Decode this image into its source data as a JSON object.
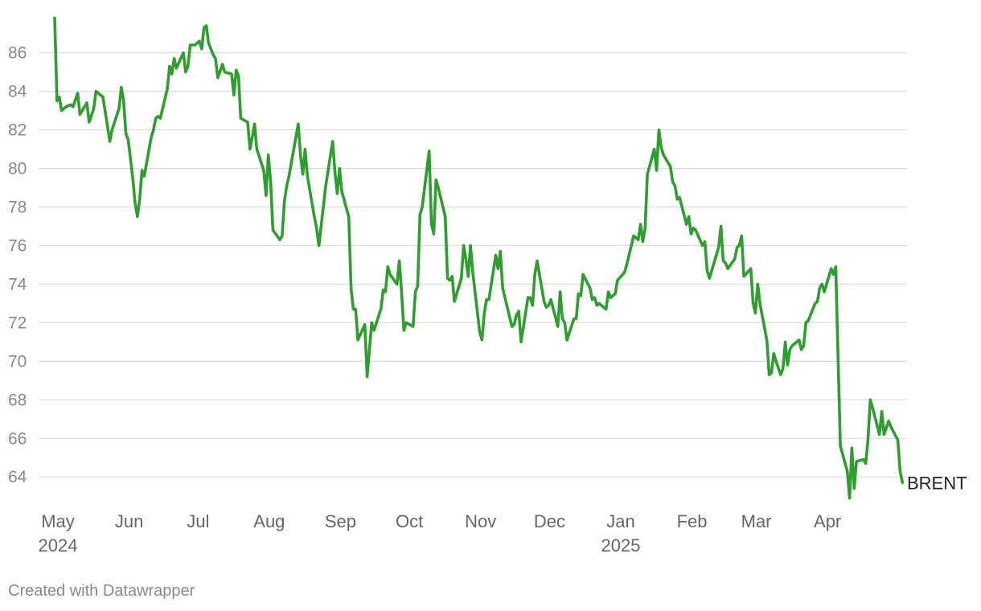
{
  "chart_data": {
    "type": "line",
    "title": "",
    "xlabel": "",
    "ylabel": "",
    "ylim": [
      62.8,
      87.9
    ],
    "yticks": [
      64,
      66,
      68,
      70,
      72,
      74,
      76,
      78,
      80,
      82,
      84,
      86
    ],
    "grid": true,
    "x_axis": {
      "start": "2024-05-01",
      "end": "2025-04-30",
      "ticks": [
        {
          "date": "2024-05-01",
          "label": "May",
          "sublabel": "2024"
        },
        {
          "date": "2024-06-01",
          "label": "Jun",
          "sublabel": ""
        },
        {
          "date": "2024-07-01",
          "label": "Jul",
          "sublabel": ""
        },
        {
          "date": "2024-08-01",
          "label": "Aug",
          "sublabel": ""
        },
        {
          "date": "2024-09-01",
          "label": "Sep",
          "sublabel": ""
        },
        {
          "date": "2024-10-01",
          "label": "Oct",
          "sublabel": ""
        },
        {
          "date": "2024-11-01",
          "label": "Nov",
          "sublabel": ""
        },
        {
          "date": "2024-12-01",
          "label": "Dec",
          "sublabel": ""
        },
        {
          "date": "2025-01-01",
          "label": "Jan",
          "sublabel": "2025"
        },
        {
          "date": "2025-02-01",
          "label": "Feb",
          "sublabel": ""
        },
        {
          "date": "2025-03-01",
          "label": "Mar",
          "sublabel": ""
        },
        {
          "date": "2025-04-01",
          "label": "Apr",
          "sublabel": ""
        }
      ]
    },
    "series": [
      {
        "name": "BRENT",
        "color": "#2e9e2e",
        "points": [
          [
            "2024-05-01",
            87.8
          ],
          [
            "2024-05-02",
            83.5
          ],
          [
            "2024-05-03",
            83.7
          ],
          [
            "2024-05-04",
            83.0
          ],
          [
            "2024-05-06",
            83.2
          ],
          [
            "2024-05-08",
            83.3
          ],
          [
            "2024-05-09",
            83.2
          ],
          [
            "2024-05-11",
            83.9
          ],
          [
            "2024-05-12",
            82.8
          ],
          [
            "2024-05-13",
            83.0
          ],
          [
            "2024-05-15",
            83.4
          ],
          [
            "2024-05-16",
            82.4
          ],
          [
            "2024-05-18",
            83.1
          ],
          [
            "2024-05-19",
            84.0
          ],
          [
            "2024-05-22",
            83.7
          ],
          [
            "2024-05-25",
            81.4
          ],
          [
            "2024-05-26",
            82.0
          ],
          [
            "2024-05-29",
            83.1
          ],
          [
            "2024-05-30",
            84.2
          ],
          [
            "2024-05-31",
            83.5
          ],
          [
            "2024-06-01",
            81.8
          ],
          [
            "2024-06-02",
            81.5
          ],
          [
            "2024-06-04",
            79.5
          ],
          [
            "2024-06-05",
            78.2
          ],
          [
            "2024-06-06",
            77.5
          ],
          [
            "2024-06-07",
            78.4
          ],
          [
            "2024-06-08",
            79.9
          ],
          [
            "2024-06-09",
            79.6
          ],
          [
            "2024-06-12",
            81.6
          ],
          [
            "2024-06-13",
            82.0
          ],
          [
            "2024-06-14",
            82.6
          ],
          [
            "2024-06-15",
            82.7
          ],
          [
            "2024-06-16",
            82.6
          ],
          [
            "2024-06-19",
            84.1
          ],
          [
            "2024-06-20",
            85.3
          ],
          [
            "2024-06-21",
            84.9
          ],
          [
            "2024-06-22",
            85.7
          ],
          [
            "2024-06-23",
            85.2
          ],
          [
            "2024-06-26",
            86.0
          ],
          [
            "2024-06-27",
            85.0
          ],
          [
            "2024-06-28",
            85.3
          ],
          [
            "2024-06-29",
            86.4
          ],
          [
            "2024-07-01",
            86.4
          ],
          [
            "2024-07-03",
            86.6
          ],
          [
            "2024-07-04",
            86.2
          ],
          [
            "2024-07-05",
            87.3
          ],
          [
            "2024-07-06",
            87.4
          ],
          [
            "2024-07-07",
            86.5
          ],
          [
            "2024-07-09",
            85.9
          ],
          [
            "2024-07-10",
            85.7
          ],
          [
            "2024-07-11",
            84.7
          ],
          [
            "2024-07-13",
            85.4
          ],
          [
            "2024-07-14",
            85.0
          ],
          [
            "2024-07-17",
            84.9
          ],
          [
            "2024-07-18",
            83.8
          ],
          [
            "2024-07-19",
            85.1
          ],
          [
            "2024-07-20",
            84.8
          ],
          [
            "2024-07-21",
            82.6
          ],
          [
            "2024-07-24",
            82.4
          ],
          [
            "2024-07-25",
            81.0
          ],
          [
            "2024-07-26",
            81.6
          ],
          [
            "2024-07-27",
            82.3
          ],
          [
            "2024-07-28",
            81.0
          ],
          [
            "2024-07-31",
            79.9
          ],
          [
            "2024-08-01",
            78.6
          ],
          [
            "2024-08-02",
            80.7
          ],
          [
            "2024-08-03",
            79.3
          ],
          [
            "2024-08-04",
            76.8
          ],
          [
            "2024-08-07",
            76.3
          ],
          [
            "2024-08-08",
            76.5
          ],
          [
            "2024-08-09",
            78.3
          ],
          [
            "2024-08-10",
            79.1
          ],
          [
            "2024-08-11",
            79.6
          ],
          [
            "2024-08-15",
            82.3
          ],
          [
            "2024-08-16",
            80.7
          ],
          [
            "2024-08-17",
            79.7
          ],
          [
            "2024-08-18",
            81.0
          ],
          [
            "2024-08-19",
            79.6
          ],
          [
            "2024-08-22",
            77.5
          ],
          [
            "2024-08-23",
            76.9
          ],
          [
            "2024-08-24",
            76.0
          ],
          [
            "2024-08-27",
            79.1
          ],
          [
            "2024-08-30",
            81.4
          ],
          [
            "2024-08-31",
            79.8
          ],
          [
            "2024-09-01",
            78.7
          ],
          [
            "2024-09-02",
            80.0
          ],
          [
            "2024-09-03",
            78.8
          ],
          [
            "2024-09-06",
            77.5
          ],
          [
            "2024-09-07",
            73.8
          ],
          [
            "2024-09-08",
            72.7
          ],
          [
            "2024-09-09",
            72.7
          ],
          [
            "2024-09-10",
            71.1
          ],
          [
            "2024-09-13",
            71.9
          ],
          [
            "2024-09-14",
            69.2
          ],
          [
            "2024-09-16",
            72.0
          ],
          [
            "2024-09-17",
            71.6
          ],
          [
            "2024-09-20",
            72.7
          ],
          [
            "2024-09-21",
            73.7
          ],
          [
            "2024-09-22",
            73.6
          ],
          [
            "2024-09-23",
            74.9
          ],
          [
            "2024-09-24",
            74.5
          ],
          [
            "2024-09-27",
            74.0
          ],
          [
            "2024-09-28",
            75.2
          ],
          [
            "2024-09-29",
            73.6
          ],
          [
            "2024-09-30",
            71.6
          ],
          [
            "2024-10-01",
            72.0
          ],
          [
            "2024-10-04",
            71.8
          ],
          [
            "2024-10-05",
            73.6
          ],
          [
            "2024-10-06",
            73.9
          ],
          [
            "2024-10-07",
            77.6
          ],
          [
            "2024-10-08",
            78.0
          ],
          [
            "2024-10-11",
            80.9
          ],
          [
            "2024-10-12",
            77.1
          ],
          [
            "2024-10-13",
            76.6
          ],
          [
            "2024-10-14",
            79.4
          ],
          [
            "2024-10-15",
            79.0
          ],
          [
            "2024-10-18",
            77.5
          ],
          [
            "2024-10-19",
            74.3
          ],
          [
            "2024-10-20",
            74.2
          ],
          [
            "2024-10-21",
            74.4
          ],
          [
            "2024-10-22",
            73.1
          ],
          [
            "2024-10-25",
            74.3
          ],
          [
            "2024-10-26",
            76.0
          ],
          [
            "2024-10-27",
            75.3
          ],
          [
            "2024-10-28",
            74.4
          ],
          [
            "2024-10-29",
            76.0
          ],
          [
            "2024-10-30",
            74.6
          ],
          [
            "2024-11-02",
            71.5
          ],
          [
            "2024-11-03",
            71.1
          ],
          [
            "2024-11-04",
            72.5
          ],
          [
            "2024-11-05",
            73.2
          ],
          [
            "2024-11-06",
            73.2
          ],
          [
            "2024-11-09",
            75.5
          ],
          [
            "2024-11-10",
            74.8
          ],
          [
            "2024-11-11",
            75.7
          ],
          [
            "2024-11-12",
            73.8
          ],
          [
            "2024-11-16",
            71.8
          ],
          [
            "2024-11-17",
            71.9
          ],
          [
            "2024-11-18",
            72.4
          ],
          [
            "2024-11-19",
            72.6
          ],
          [
            "2024-11-20",
            71.0
          ],
          [
            "2024-11-23",
            73.3
          ],
          [
            "2024-11-24",
            73.3
          ],
          [
            "2024-11-25",
            72.9
          ],
          [
            "2024-11-26",
            74.5
          ],
          [
            "2024-11-27",
            75.2
          ],
          [
            "2024-11-30",
            73.1
          ],
          [
            "2024-12-01",
            72.8
          ],
          [
            "2024-12-02",
            72.9
          ],
          [
            "2024-12-03",
            73.2
          ],
          [
            "2024-12-06",
            71.8
          ],
          [
            "2024-12-07",
            73.6
          ],
          [
            "2024-12-08",
            72.2
          ],
          [
            "2024-12-09",
            72.0
          ],
          [
            "2024-12-10",
            71.1
          ],
          [
            "2024-12-13",
            72.2
          ],
          [
            "2024-12-14",
            72.2
          ],
          [
            "2024-12-15",
            73.5
          ],
          [
            "2024-12-16",
            73.4
          ],
          [
            "2024-12-17",
            74.5
          ],
          [
            "2024-12-20",
            73.8
          ],
          [
            "2024-12-21",
            73.2
          ],
          [
            "2024-12-22",
            73.3
          ],
          [
            "2024-12-23",
            72.9
          ],
          [
            "2024-12-24",
            73.0
          ],
          [
            "2024-12-27",
            72.7
          ],
          [
            "2024-12-28",
            73.6
          ],
          [
            "2024-12-29",
            73.3
          ],
          [
            "2024-12-31",
            73.5
          ],
          [
            "2025-01-01",
            74.2
          ],
          [
            "2025-01-04",
            74.6
          ],
          [
            "2025-01-05",
            75.0
          ],
          [
            "2025-01-08",
            76.5
          ],
          [
            "2025-01-09",
            76.4
          ],
          [
            "2025-01-10",
            76.3
          ],
          [
            "2025-01-11",
            77.1
          ],
          [
            "2025-01-12",
            76.2
          ],
          [
            "2025-01-13",
            76.9
          ],
          [
            "2025-01-14",
            79.7
          ],
          [
            "2025-01-17",
            81.0
          ],
          [
            "2025-01-18",
            79.9
          ],
          [
            "2025-01-19",
            82.0
          ],
          [
            "2025-01-20",
            81.1
          ],
          [
            "2025-01-21",
            80.7
          ],
          [
            "2025-01-24",
            80.1
          ],
          [
            "2025-01-25",
            79.3
          ],
          [
            "2025-01-26",
            79.1
          ],
          [
            "2025-01-27",
            78.4
          ],
          [
            "2025-01-28",
            78.5
          ],
          [
            "2025-01-31",
            77.1
          ],
          [
            "2025-02-01",
            77.5
          ],
          [
            "2025-02-02",
            76.6
          ],
          [
            "2025-02-03",
            76.9
          ],
          [
            "2025-02-04",
            76.8
          ],
          [
            "2025-02-07",
            76.0
          ],
          [
            "2025-02-08",
            76.2
          ],
          [
            "2025-02-09",
            74.7
          ],
          [
            "2025-02-10",
            74.3
          ],
          [
            "2025-02-11",
            74.7
          ],
          [
            "2025-02-14",
            75.9
          ],
          [
            "2025-02-15",
            77.0
          ],
          [
            "2025-02-16",
            75.2
          ],
          [
            "2025-02-17",
            75.1
          ],
          [
            "2025-02-18",
            74.8
          ],
          [
            "2025-02-21",
            75.3
          ],
          [
            "2025-02-22",
            75.9
          ],
          [
            "2025-02-23",
            76.0
          ],
          [
            "2025-02-24",
            76.5
          ],
          [
            "2025-02-25",
            74.4
          ],
          [
            "2025-02-28",
            74.8
          ],
          [
            "2025-03-01",
            73.0
          ],
          [
            "2025-03-02",
            72.5
          ],
          [
            "2025-03-03",
            74.0
          ],
          [
            "2025-03-04",
            73.0
          ],
          [
            "2025-03-07",
            71.1
          ],
          [
            "2025-03-08",
            69.3
          ],
          [
            "2025-03-09",
            69.4
          ],
          [
            "2025-03-10",
            70.4
          ],
          [
            "2025-03-11",
            70.0
          ],
          [
            "2025-03-13",
            69.3
          ],
          [
            "2025-03-14",
            69.6
          ],
          [
            "2025-03-15",
            71.0
          ],
          [
            "2025-03-16",
            69.8
          ],
          [
            "2025-03-17",
            70.6
          ],
          [
            "2025-03-18",
            70.8
          ],
          [
            "2025-03-21",
            71.1
          ],
          [
            "2025-03-22",
            70.6
          ],
          [
            "2025-03-23",
            70.8
          ],
          [
            "2025-03-24",
            72.0
          ],
          [
            "2025-03-25",
            72.1
          ],
          [
            "2025-03-28",
            73.0
          ],
          [
            "2025-03-29",
            73.1
          ],
          [
            "2025-03-30",
            73.8
          ],
          [
            "2025-03-31",
            74.0
          ],
          [
            "2025-04-01",
            73.6
          ],
          [
            "2025-04-04",
            74.8
          ],
          [
            "2025-04-05",
            74.5
          ],
          [
            "2025-04-06",
            74.9
          ],
          [
            "2025-04-07",
            70.1
          ],
          [
            "2025-04-08",
            65.6
          ],
          [
            "2025-04-11",
            64.3
          ],
          [
            "2025-04-12",
            62.9
          ],
          [
            "2025-04-13",
            65.5
          ],
          [
            "2025-04-14",
            63.4
          ],
          [
            "2025-04-15",
            64.8
          ],
          [
            "2025-04-18",
            64.9
          ],
          [
            "2025-04-19",
            64.7
          ],
          [
            "2025-04-20",
            65.9
          ],
          [
            "2025-04-21",
            68.0
          ],
          [
            "2025-04-22",
            67.6
          ],
          [
            "2025-04-25",
            66.2
          ],
          [
            "2025-04-26",
            67.4
          ],
          [
            "2025-04-27",
            66.2
          ],
          [
            "2025-04-29",
            66.9
          ],
          [
            "2025-04-30",
            66.6
          ],
          [
            "2025-05-03",
            65.9
          ],
          [
            "2025-05-04",
            64.3
          ],
          [
            "2025-05-05",
            63.7
          ]
        ]
      }
    ],
    "footer": "Created with Datawrapper"
  }
}
